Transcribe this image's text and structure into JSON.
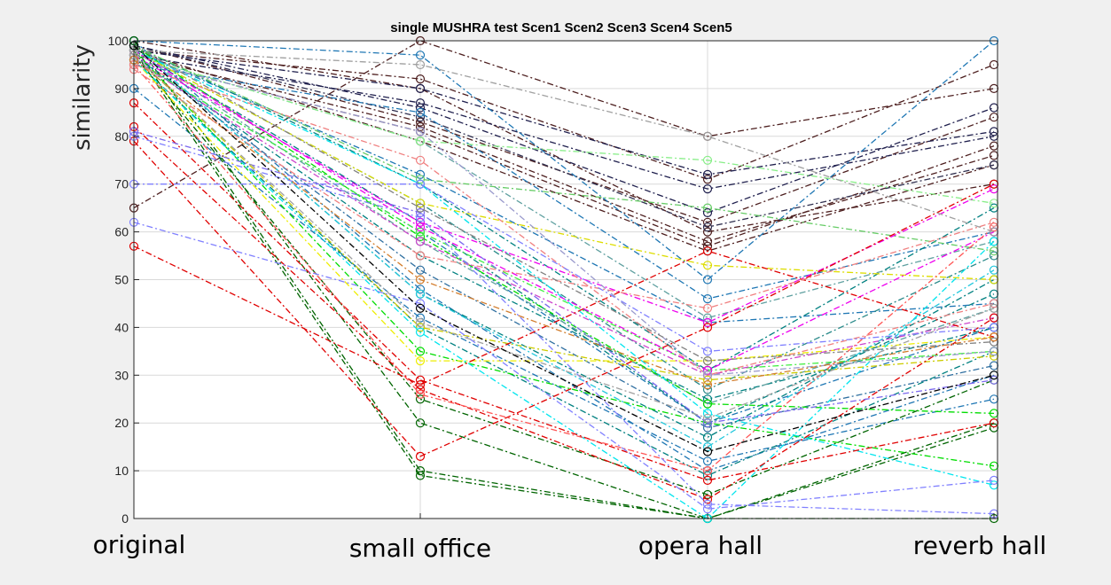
{
  "chart_data": {
    "type": "line",
    "title": "single MUSHRA test Scen1 Scen2 Scen3 Scen4 Scen5",
    "xlabel": "",
    "ylabel": "similarity",
    "categories": [
      "original",
      "small office",
      "opera hall",
      "reverb hall"
    ],
    "ylim": [
      0,
      100
    ],
    "yticks": [
      0,
      10,
      20,
      30,
      40,
      50,
      60,
      70,
      80,
      90,
      100
    ],
    "grid": true,
    "line_style": "dash-dot",
    "marker": "circle",
    "series": [
      {
        "color": "#4d1f1f",
        "values": [
          65,
          100,
          80,
          90
        ]
      },
      {
        "color": "#4d1f1f",
        "values": [
          98,
          92,
          71,
          95
        ]
      },
      {
        "color": "#4d1f1f",
        "values": [
          99,
          83,
          62,
          84
        ]
      },
      {
        "color": "#4d1f1f",
        "values": [
          97,
          82,
          58,
          76
        ]
      },
      {
        "color": "#4d1f1f",
        "values": [
          96,
          81,
          57,
          78
        ]
      },
      {
        "color": "#4d1f1f",
        "values": [
          100,
          90,
          60,
          70
        ]
      },
      {
        "color": "#4d1f1f",
        "values": [
          98,
          79,
          56,
          74
        ]
      },
      {
        "color": "#1f1f4d",
        "values": [
          98,
          90,
          72,
          81
        ]
      },
      {
        "color": "#1f1f4d",
        "values": [
          97,
          87,
          69,
          80
        ]
      },
      {
        "color": "#1f1f4d",
        "values": [
          99,
          86,
          64,
          86
        ]
      },
      {
        "color": "#303050",
        "values": [
          99,
          84,
          61,
          74
        ]
      },
      {
        "color": "#1f77b4",
        "values": [
          100,
          97,
          50,
          100
        ]
      },
      {
        "color": "#1f77b4",
        "values": [
          95,
          85,
          46,
          60
        ]
      },
      {
        "color": "#1f77b4",
        "values": [
          98,
          72,
          41,
          45
        ]
      },
      {
        "color": "#1f77b4",
        "values": [
          96,
          60,
          20,
          40
        ]
      },
      {
        "color": "#1f77b4",
        "values": [
          100,
          48,
          10,
          30
        ]
      },
      {
        "color": "#1f77b4",
        "values": [
          90,
          42,
          12,
          25
        ]
      },
      {
        "color": "#2f6fa0",
        "values": [
          97,
          52,
          19,
          32
        ]
      },
      {
        "color": "#008080",
        "values": [
          99,
          70,
          31,
          65
        ]
      },
      {
        "color": "#008080",
        "values": [
          98,
          62,
          20,
          47
        ]
      },
      {
        "color": "#008080",
        "values": [
          97,
          55,
          25,
          40
        ]
      },
      {
        "color": "#008080",
        "values": [
          99,
          47,
          17,
          50
        ]
      },
      {
        "color": "#008080",
        "values": [
          96,
          40,
          9,
          35
        ]
      },
      {
        "color": "#2a8a8a",
        "values": [
          98,
          66,
          27,
          55
        ]
      },
      {
        "color": "#5fa0a0",
        "values": [
          97,
          79,
          42,
          58
        ]
      },
      {
        "color": "#5fa0a0",
        "values": [
          98,
          58,
          24,
          44
        ]
      },
      {
        "color": "#006400",
        "values": [
          100,
          20,
          0,
          20
        ]
      },
      {
        "color": "#006400",
        "values": [
          99,
          10,
          0,
          19
        ]
      },
      {
        "color": "#006400",
        "values": [
          98,
          9,
          0,
          0
        ]
      },
      {
        "color": "#006400",
        "values": [
          97,
          25,
          5,
          29
        ]
      },
      {
        "color": "#00dd00",
        "values": [
          99,
          59,
          24,
          22
        ]
      },
      {
        "color": "#00dd00",
        "values": [
          98,
          35,
          20,
          11
        ]
      },
      {
        "color": "#44ee44",
        "values": [
          96,
          60,
          31,
          35
        ]
      },
      {
        "color": "#88ee88",
        "values": [
          97,
          79,
          75,
          66
        ]
      },
      {
        "color": "#66cc66",
        "values": [
          99,
          71,
          65,
          56
        ]
      },
      {
        "color": "#dddd00",
        "values": [
          98,
          66,
          53,
          50
        ]
      },
      {
        "color": "#eeee00",
        "values": [
          96,
          33,
          33,
          38
        ]
      },
      {
        "color": "#cccc00",
        "values": [
          97,
          40,
          29,
          34
        ]
      },
      {
        "color": "#00e5ee",
        "values": [
          98,
          70,
          22,
          7
        ]
      },
      {
        "color": "#00e5ee",
        "values": [
          96,
          39,
          0,
          58
        ]
      },
      {
        "color": "#22c8dd",
        "values": [
          99,
          47,
          15,
          52
        ]
      },
      {
        "color": "#ee00ee",
        "values": [
          97,
          62,
          41,
          69
        ]
      },
      {
        "color": "#ee00ee",
        "values": [
          98,
          61,
          31,
          60
        ]
      },
      {
        "color": "#cc44cc",
        "values": [
          96,
          58,
          30,
          42
        ]
      },
      {
        "color": "#e00000",
        "values": [
          87,
          29,
          8,
          20
        ]
      },
      {
        "color": "#e00000",
        "values": [
          82,
          27,
          4,
          42
        ]
      },
      {
        "color": "#e00000",
        "values": [
          79,
          13,
          40,
          70
        ]
      },
      {
        "color": "#e00000",
        "values": [
          57,
          28,
          56,
          38
        ]
      },
      {
        "color": "#ff5555",
        "values": [
          95,
          26,
          10,
          61
        ]
      },
      {
        "color": "#f08080",
        "values": [
          95,
          75,
          30,
          45
        ]
      },
      {
        "color": "#f08080",
        "values": [
          94,
          55,
          44,
          62
        ]
      },
      {
        "color": "#8080ff",
        "values": [
          80,
          63,
          3,
          1
        ]
      },
      {
        "color": "#8080ff",
        "values": [
          70,
          70,
          35,
          40
        ]
      },
      {
        "color": "#8080ff",
        "values": [
          62,
          45,
          2,
          8
        ]
      },
      {
        "color": "#7b68ee",
        "values": [
          81,
          64,
          20,
          29
        ]
      },
      {
        "color": "#9999cc",
        "values": [
          96,
          81,
          30,
          35
        ]
      },
      {
        "color": "#a0a0a0",
        "values": [
          98,
          95,
          80,
          60
        ]
      },
      {
        "color": "#a0a0a0",
        "values": [
          97,
          41,
          21,
          44
        ]
      },
      {
        "color": "#808080",
        "values": [
          99,
          65,
          33,
          37
        ]
      },
      {
        "color": "#d27d2d",
        "values": [
          96,
          50,
          28,
          38
        ]
      },
      {
        "color": "#000000",
        "values": [
          99,
          44,
          14,
          30
        ]
      }
    ]
  }
}
